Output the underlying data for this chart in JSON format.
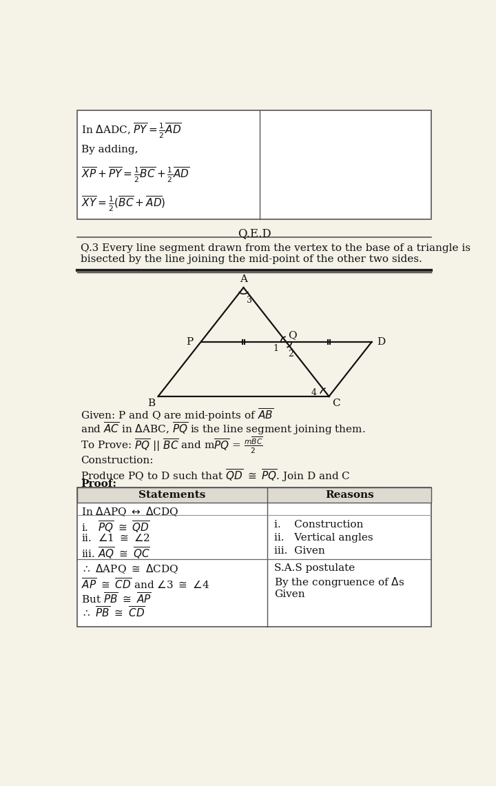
{
  "page_bg": "#f5f2e8",
  "border_color": "#555555",
  "text_color": "#111111",
  "qed_text": "Q.E.D",
  "q3_text": "Q.3 Every line segment drawn from the vertex to the base of a triangle is\nbisected by the line joining the mid-point of the other two sides.",
  "table_col1_header": "Statements",
  "table_col2_header": "Reasons"
}
